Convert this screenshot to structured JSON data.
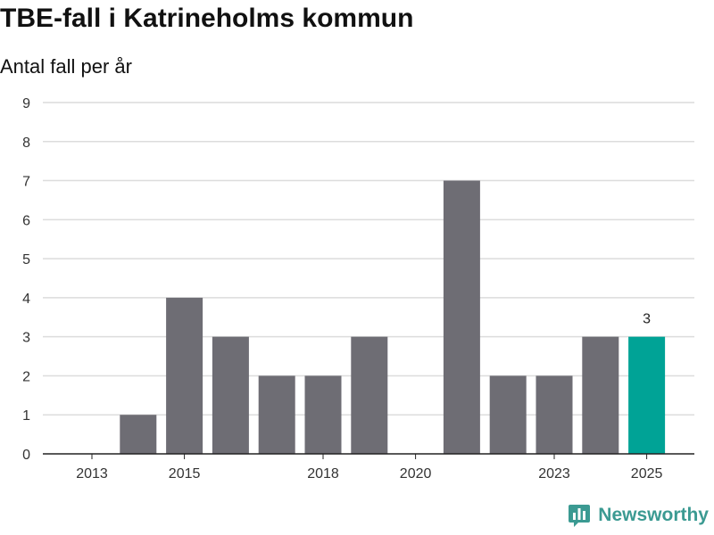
{
  "header": {
    "title": "TBE-fall i Katrineholms kommun",
    "subtitle": "Antal fall per år"
  },
  "colors": {
    "bar": "#6e6d74",
    "highlight": "#00a396",
    "grid": "#dcdcdc",
    "axis": "#222222",
    "brand": "#3b9a92"
  },
  "brand": {
    "name": "Newsworthy",
    "icon": "bar-chart-logo-icon"
  },
  "chart_data": {
    "type": "bar",
    "title": "TBE-fall i Katrineholms kommun",
    "subtitle": "Antal fall per år",
    "categories": [
      "2013",
      "2014",
      "2015",
      "2016",
      "2017",
      "2018",
      "2019",
      "2020",
      "2021",
      "2022",
      "2023",
      "2024",
      "2025"
    ],
    "values": [
      0,
      1,
      4,
      3,
      2,
      2,
      3,
      0,
      7,
      2,
      2,
      3,
      3
    ],
    "x_tick_labels": [
      "2013",
      "2015",
      "2018",
      "2020",
      "2023",
      "2025"
    ],
    "ylim": [
      0,
      9
    ],
    "yticks": [
      0,
      1,
      2,
      3,
      4,
      5,
      6,
      7,
      8,
      9
    ],
    "highlight_index": 12,
    "data_labels": [
      {
        "category": "2025",
        "text": "3"
      }
    ],
    "grid": true,
    "legend": "none"
  }
}
